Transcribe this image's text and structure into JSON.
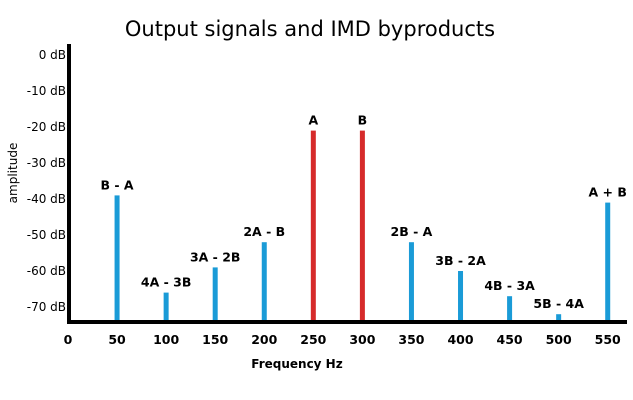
{
  "chart_data": {
    "type": "bar",
    "title": "Output signals and IMD byproducts",
    "xlabel": "Frequency Hz",
    "ylabel": "amplitude",
    "yticks": [
      "0 dB",
      "-10 dB",
      "-20 dB",
      "-30 dB",
      "-40 dB",
      "-50 dB",
      "-60 dB",
      "-70 dB"
    ],
    "ylim": [
      -75,
      0
    ],
    "xticks": [
      "0",
      "50",
      "100",
      "150",
      "200",
      "250",
      "300",
      "350",
      "400",
      "450",
      "500",
      "550"
    ],
    "xlim": [
      0,
      575
    ],
    "grid": false,
    "colors": {
      "intermod": "#1a9bd7",
      "signal": "#d62b2b",
      "axis": "#000000"
    },
    "series": [
      {
        "label": "B - A",
        "x": 50,
        "value": -39,
        "color": "#1a9bd7"
      },
      {
        "label": "4A - 3B",
        "x": 100,
        "value": -66,
        "color": "#1a9bd7"
      },
      {
        "label": "3A - 2B",
        "x": 150,
        "value": -59,
        "color": "#1a9bd7"
      },
      {
        "label": "2A - B",
        "x": 200,
        "value": -52,
        "color": "#1a9bd7"
      },
      {
        "label": "A",
        "x": 250,
        "value": -21,
        "color": "#d62b2b"
      },
      {
        "label": "B",
        "x": 300,
        "value": -21,
        "color": "#d62b2b"
      },
      {
        "label": "2B - A",
        "x": 350,
        "value": -52,
        "color": "#1a9bd7"
      },
      {
        "label": "3B - 2A",
        "x": 400,
        "value": -60,
        "color": "#1a9bd7"
      },
      {
        "label": "4B - 3A",
        "x": 450,
        "value": -67,
        "color": "#1a9bd7"
      },
      {
        "label": "5B - 4A",
        "x": 500,
        "value": -72,
        "color": "#1a9bd7"
      },
      {
        "label": "A + B",
        "x": 550,
        "value": -41,
        "color": "#1a9bd7"
      }
    ]
  }
}
